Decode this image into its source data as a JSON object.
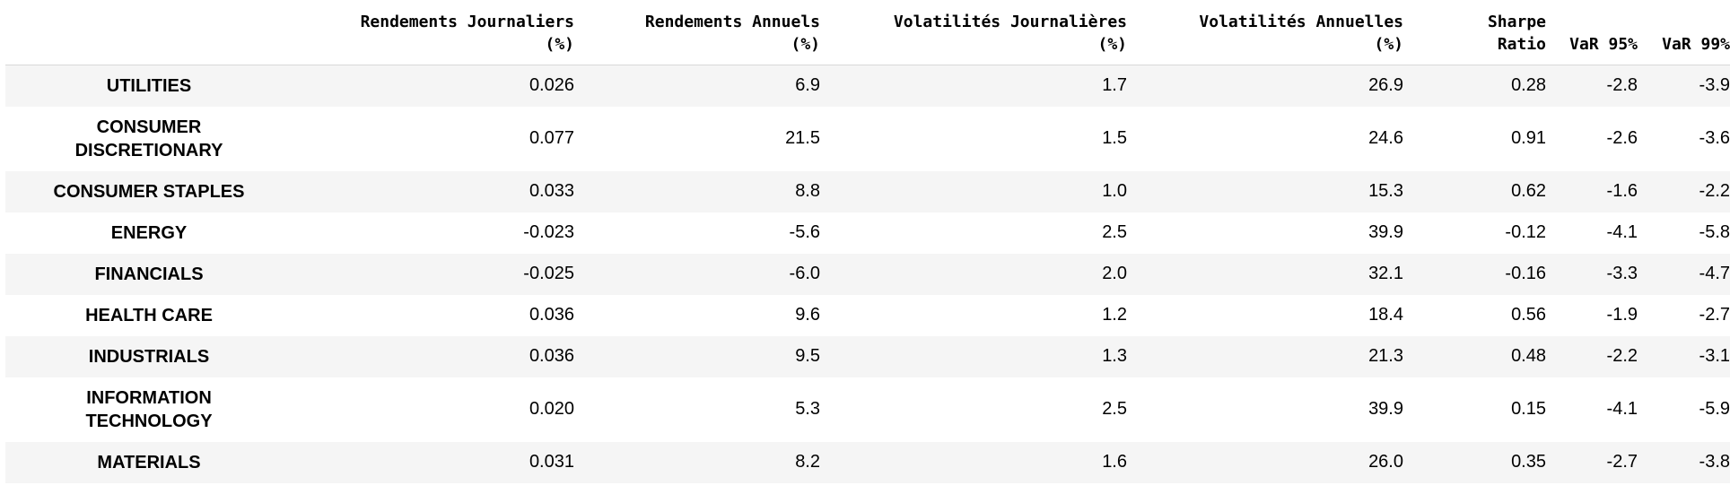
{
  "table": {
    "columns": [
      {
        "lines": [
          "Rendements Journaliers",
          "(%)"
        ]
      },
      {
        "lines": [
          "Rendements Annuels",
          "(%)"
        ]
      },
      {
        "lines": [
          "Volatilités Journalières",
          "(%)"
        ]
      },
      {
        "lines": [
          "Volatilités Annuelles",
          "(%)"
        ]
      },
      {
        "lines": [
          "Sharpe",
          "Ratio"
        ]
      },
      {
        "lines": [
          "VaR 95%"
        ]
      },
      {
        "lines": [
          "VaR 99%"
        ]
      }
    ],
    "rows": [
      {
        "label": [
          "UTILITIES"
        ],
        "values": [
          "0.026",
          "6.9",
          "1.7",
          "26.9",
          "0.28",
          "-2.8",
          "-3.9"
        ]
      },
      {
        "label": [
          "CONSUMER",
          "DISCRETIONARY"
        ],
        "values": [
          "0.077",
          "21.5",
          "1.5",
          "24.6",
          "0.91",
          "-2.6",
          "-3.6"
        ]
      },
      {
        "label": [
          "CONSUMER STAPLES"
        ],
        "values": [
          "0.033",
          "8.8",
          "1.0",
          "15.3",
          "0.62",
          "-1.6",
          "-2.2"
        ]
      },
      {
        "label": [
          "ENERGY"
        ],
        "values": [
          "-0.023",
          "-5.6",
          "2.5",
          "39.9",
          "-0.12",
          "-4.1",
          "-5.8"
        ]
      },
      {
        "label": [
          "FINANCIALS"
        ],
        "values": [
          "-0.025",
          "-6.0",
          "2.0",
          "32.1",
          "-0.16",
          "-3.3",
          "-4.7"
        ]
      },
      {
        "label": [
          "HEALTH CARE"
        ],
        "values": [
          "0.036",
          "9.6",
          "1.2",
          "18.4",
          "0.56",
          "-1.9",
          "-2.7"
        ]
      },
      {
        "label": [
          "INDUSTRIALS"
        ],
        "values": [
          "0.036",
          "9.5",
          "1.3",
          "21.3",
          "0.48",
          "-2.2",
          "-3.1"
        ]
      },
      {
        "label": [
          "INFORMATION",
          "TECHNOLOGY"
        ],
        "values": [
          "0.020",
          "5.3",
          "2.5",
          "39.9",
          "0.15",
          "-4.1",
          "-5.9"
        ]
      },
      {
        "label": [
          "MATERIALS"
        ],
        "values": [
          "0.031",
          "8.2",
          "1.6",
          "26.0",
          "0.35",
          "-2.7",
          "-3.8"
        ]
      }
    ]
  }
}
